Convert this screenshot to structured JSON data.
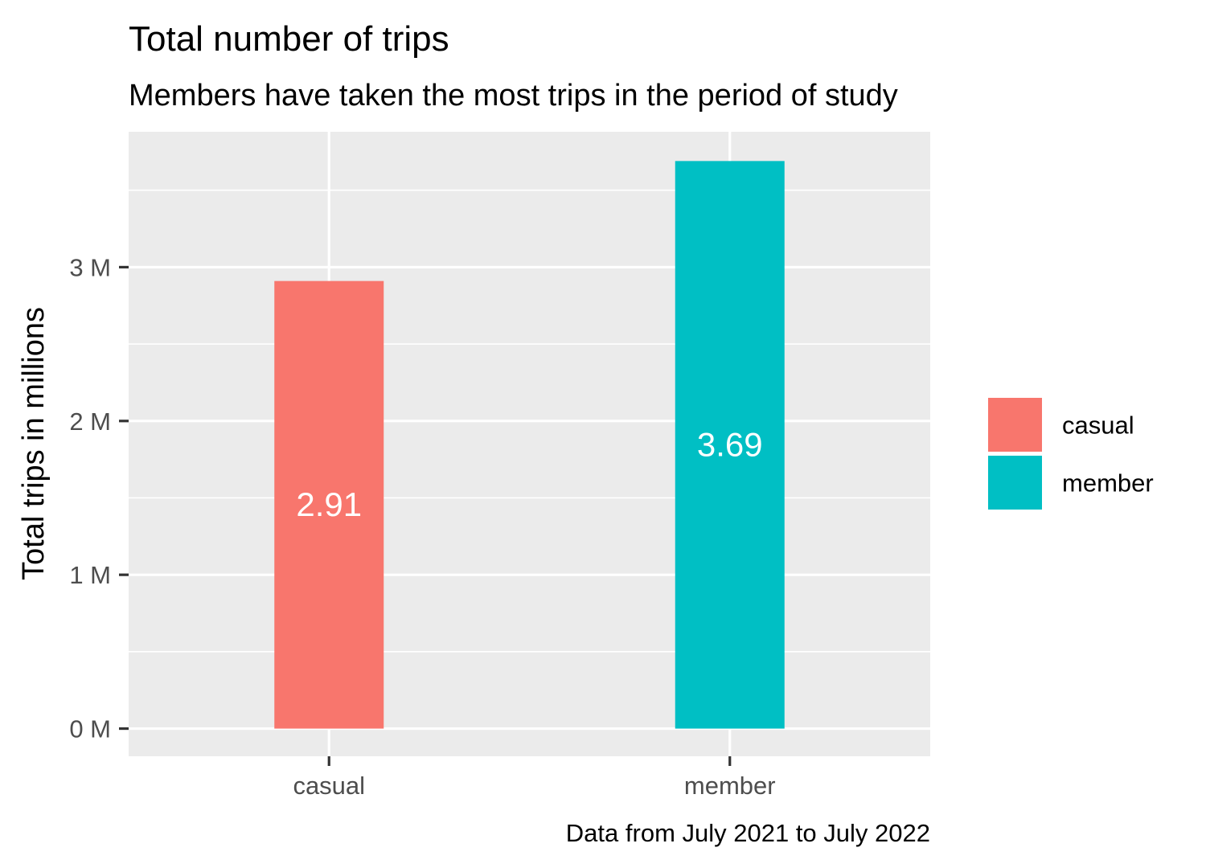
{
  "chart_data": {
    "type": "bar",
    "title": "Total number of trips",
    "subtitle": "Members have taken the most trips in the period of study",
    "caption": "Data from July 2021 to July 2022",
    "xlabel": "",
    "ylabel": "Total trips in millions",
    "categories": [
      "casual",
      "member"
    ],
    "values": [
      2.91,
      3.69
    ],
    "data_labels": [
      "2.91",
      "3.69"
    ],
    "colors": [
      "#F8766D",
      "#00BFC4"
    ],
    "ylim": [
      -0.18,
      3.88
    ],
    "y_ticks": [
      0,
      1,
      2,
      3
    ],
    "y_tick_labels": [
      "0 M",
      "1 M",
      "2 M",
      "3 M"
    ],
    "grid": true,
    "panel_background": "#EBEBEB",
    "legend": {
      "position": "right",
      "entries": [
        "casual",
        "member"
      ]
    }
  }
}
